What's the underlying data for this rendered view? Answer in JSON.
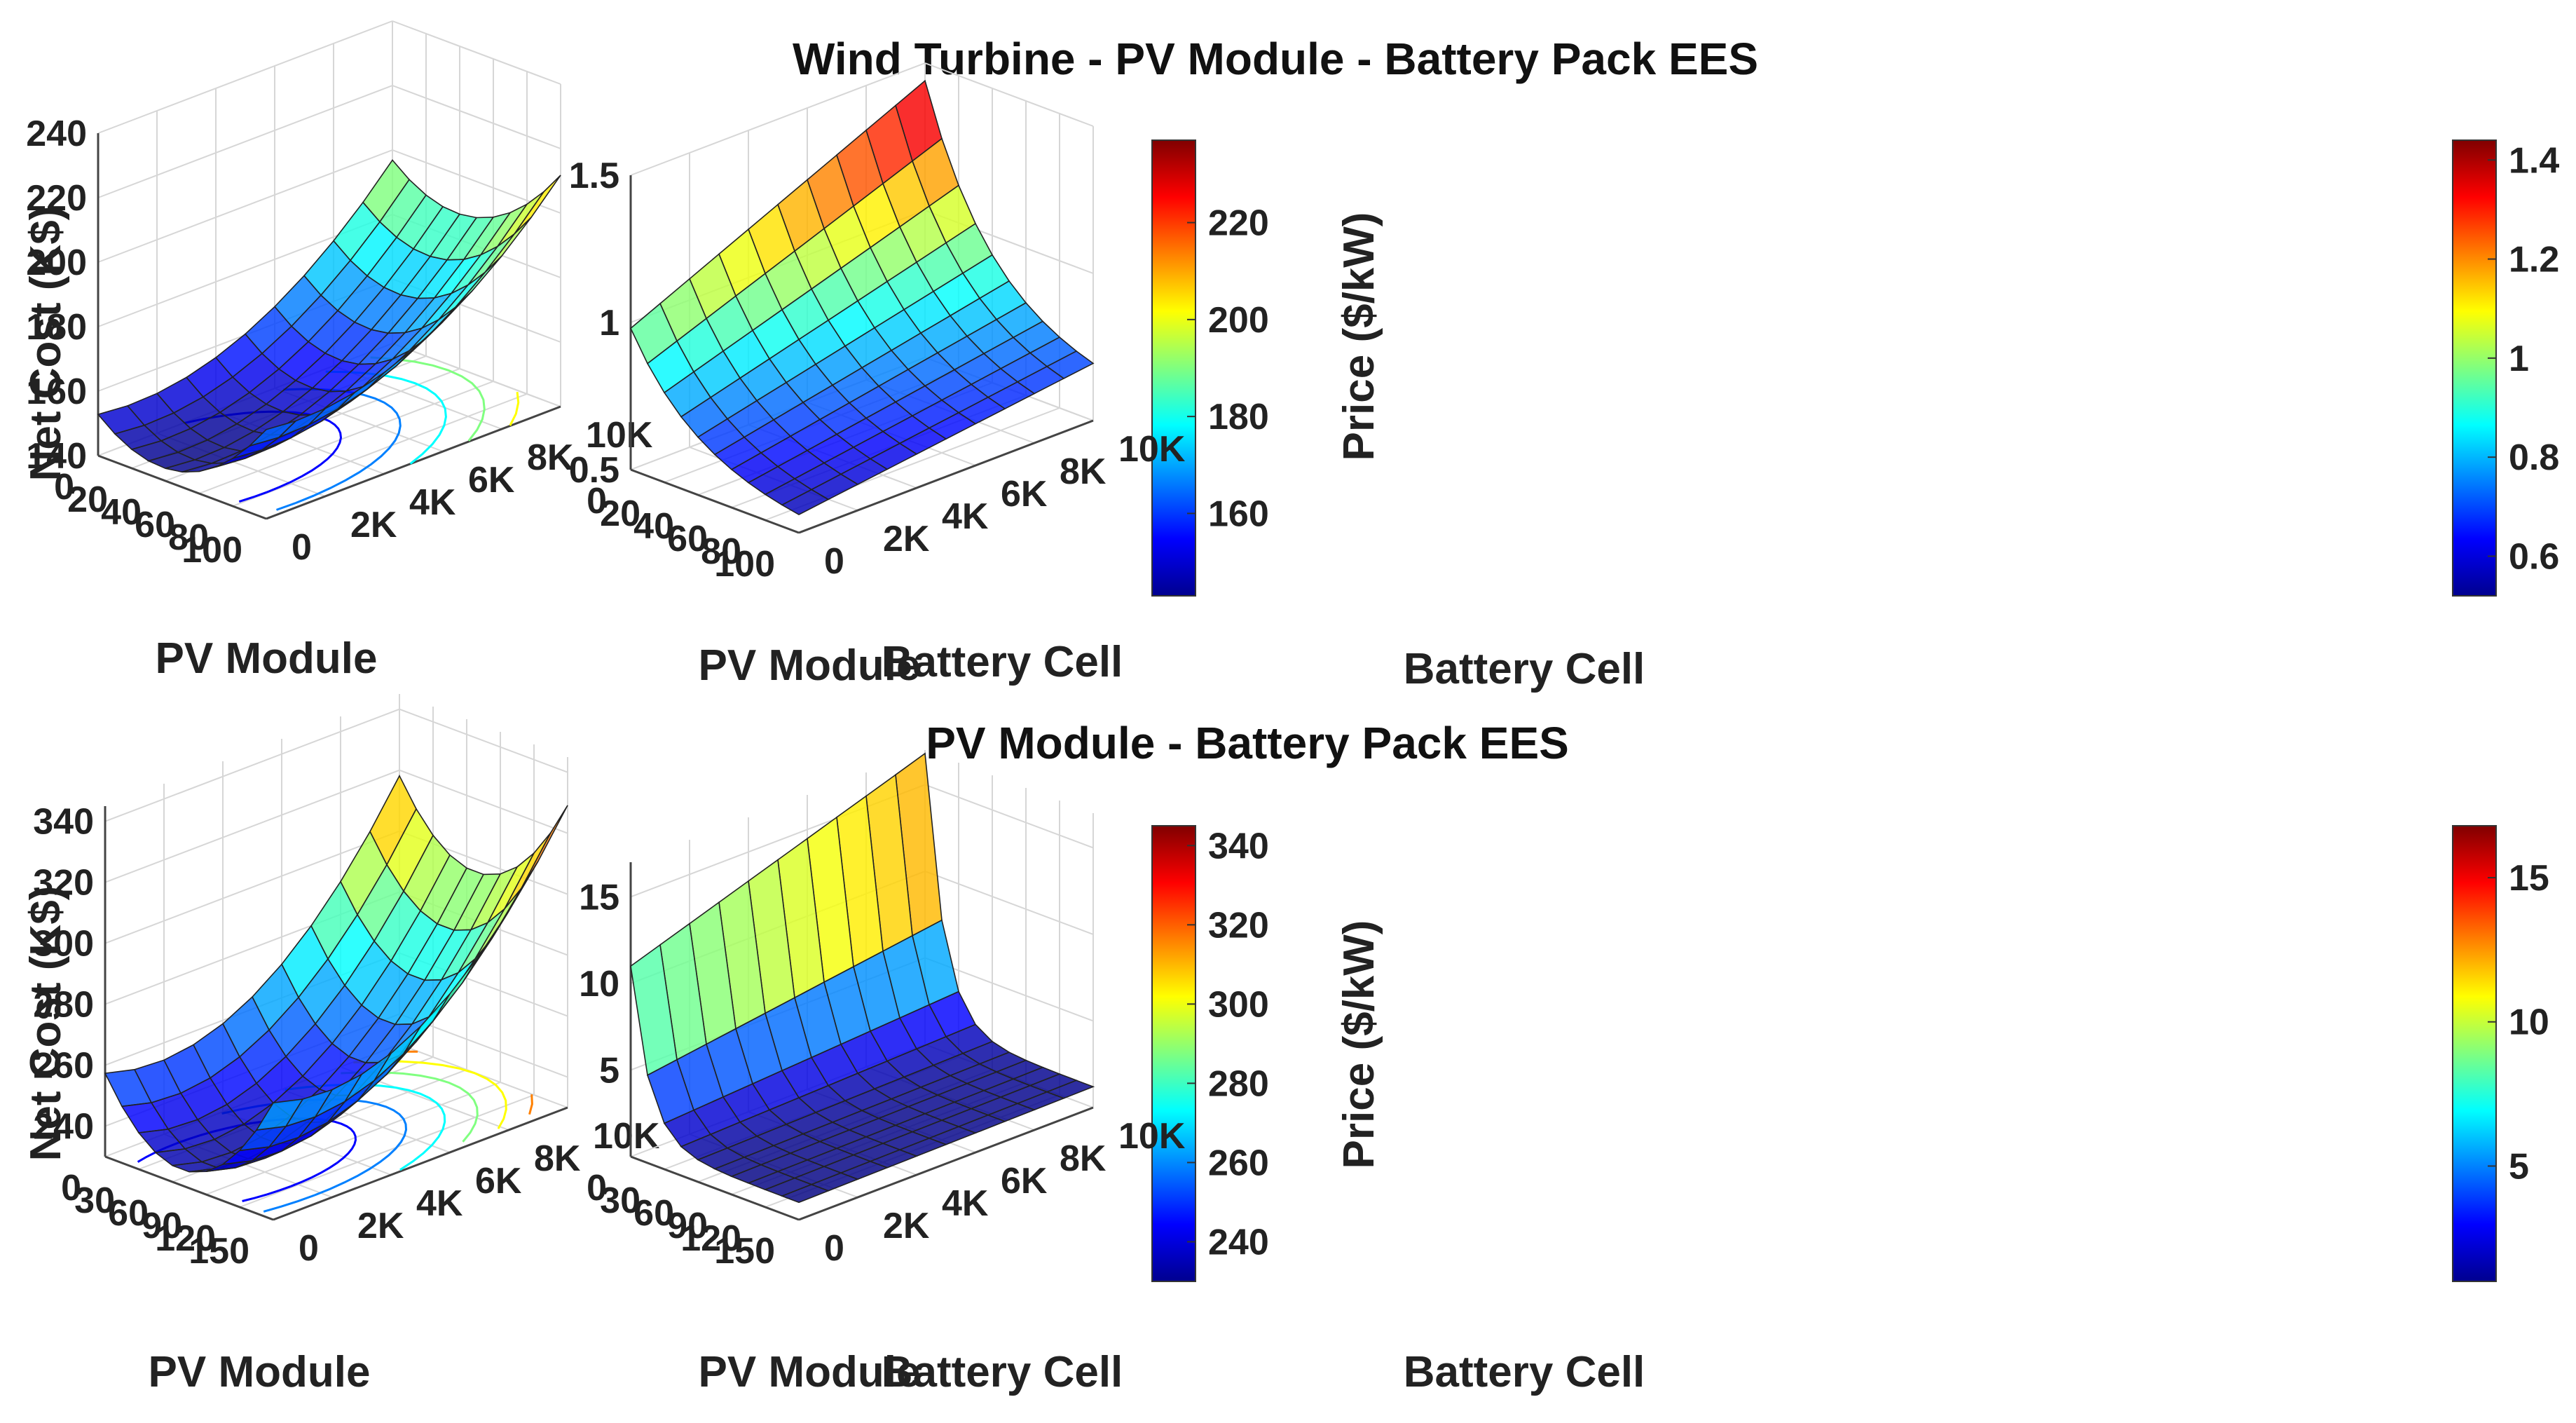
{
  "figure": {
    "title_top": "Wind Turbine - PV Module - Battery Pack EES",
    "title_bottom": "PV Module - Battery Pack EES"
  },
  "chart_data": [
    {
      "type": "surface",
      "title": "Wind Turbine - PV Module - Battery Pack EES",
      "xlabel": "PV Module",
      "ylabel": "Battery Cell",
      "zlabel": "Net Cost (K$)",
      "x_ticks": [
        "0",
        "20",
        "40",
        "60",
        "80",
        "100"
      ],
      "y_ticks": [
        "0",
        "2K",
        "4K",
        "6K",
        "8K",
        "10K"
      ],
      "z_ticks": [
        "140",
        "160",
        "180",
        "200",
        "220",
        "240"
      ],
      "colorbar_ticks": [
        "160",
        "180",
        "200",
        "220"
      ],
      "xlim": [
        0,
        100
      ],
      "ylim": [
        0,
        10000
      ],
      "zlim": [
        140,
        240
      ],
      "clim": [
        143,
        237
      ],
      "grid": true,
      "contours": true,
      "model": {
        "base": 143,
        "x_coeff": 62,
        "x_opt": 0.38,
        "y_coeff": 58,
        "y_opt": 0.12,
        "xy": 0.0
      }
    },
    {
      "type": "surface",
      "xlabel": "PV Module",
      "ylabel": "Battery Cell",
      "zlabel": "Price ($/kW)",
      "x_ticks": [
        "0",
        "20",
        "40",
        "60",
        "80",
        "100"
      ],
      "y_ticks": [
        "0",
        "2K",
        "4K",
        "6K",
        "8K",
        "10K"
      ],
      "z_ticks": [
        "0.5",
        "1",
        "1.5"
      ],
      "colorbar_ticks": [
        "0.6",
        "0.8",
        "1",
        "1.2",
        "1.4"
      ],
      "xlim": [
        0,
        100
      ],
      "ylim": [
        0,
        10000
      ],
      "zlim": [
        0.5,
        1.5
      ],
      "clim": [
        0.52,
        1.44
      ],
      "grid": true,
      "contours": false,
      "model": {
        "corner_x0_y0": 0.98,
        "corner_x1_y0": 0.52,
        "corner_x0_y1": 1.44,
        "corner_x1_y1": 0.62,
        "x_decay": 2.4
      }
    },
    {
      "type": "surface",
      "title": "PV Module - Battery Pack EES",
      "xlabel": "PV Module",
      "ylabel": "Battery Cell",
      "zlabel": "Net Cost (K$)",
      "x_ticks": [
        "0",
        "30",
        "60",
        "90",
        "120",
        "150"
      ],
      "y_ticks": [
        "0",
        "2K",
        "4K",
        "6K",
        "8K",
        "10K"
      ],
      "z_ticks": [
        "240",
        "260",
        "280",
        "300",
        "320",
        "340"
      ],
      "colorbar_ticks": [
        "240",
        "260",
        "280",
        "300",
        "320",
        "340"
      ],
      "xlim": [
        0,
        150
      ],
      "ylim": [
        0,
        10000
      ],
      "zlim": [
        230,
        345
      ],
      "clim": [
        230,
        345
      ],
      "grid": true,
      "contours": true,
      "model": {
        "base": 232,
        "x_coeff": 110,
        "x_opt": 0.45,
        "y_coeff": 95,
        "y_opt": 0.18,
        "xy": 0.0
      }
    },
    {
      "type": "surface",
      "xlabel": "PV Module",
      "ylabel": "Battery Cell",
      "zlabel": "Price ($/kW)",
      "x_ticks": [
        "0",
        "30",
        "60",
        "90",
        "120",
        "150"
      ],
      "y_ticks": [
        "0",
        "2K",
        "4K",
        "6K",
        "8K",
        "10K"
      ],
      "z_ticks": [
        "5",
        "10",
        "15"
      ],
      "colorbar_ticks": [
        "5",
        "10",
        "15"
      ],
      "xlim": [
        0,
        150
      ],
      "ylim": [
        0,
        10000
      ],
      "zlim": [
        0,
        17
      ],
      "clim": [
        1,
        16.8
      ],
      "grid": true,
      "contours": false,
      "model": {
        "corner_x0_y0": 11.0,
        "corner_x1_y0": 1.0,
        "corner_x0_y1": 16.8,
        "corner_x1_y1": 1.2,
        "x_decay": 9.0
      }
    }
  ]
}
